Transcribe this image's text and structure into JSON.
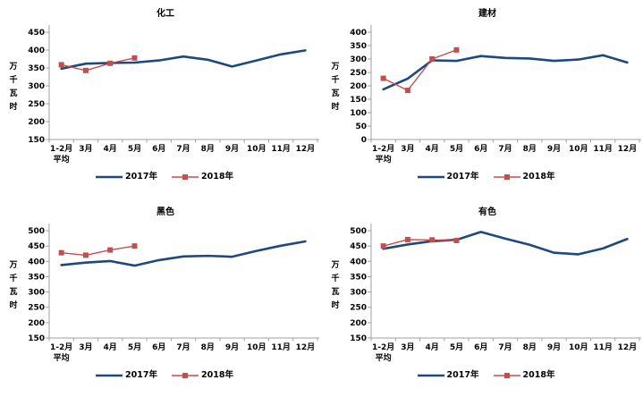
{
  "page": {
    "background": "#FFFFFF"
  },
  "colors": {
    "series_2017": "#1F497D",
    "series_2018": "#C0504D",
    "axis": "#A0A0A0",
    "text": "#000000"
  },
  "legend": {
    "items": [
      "2017年",
      "2018年"
    ]
  },
  "chart_data": [
    {
      "type": "line",
      "id": "chemicals",
      "title": "化工",
      "ylabel": "万千瓦时",
      "ylim": [
        150,
        450
      ],
      "ystep": 50,
      "grid": false,
      "legend_position": "bottom",
      "categories": [
        "1-2月\n平均",
        "3月",
        "4月",
        "5月",
        "6月",
        "7月",
        "8月",
        "9月",
        "10月",
        "11月",
        "12月"
      ],
      "series": [
        {
          "name": "2017年",
          "key": "2017",
          "color": "#1F497D",
          "marker": false,
          "values": [
            348,
            362,
            364,
            365,
            371,
            382,
            373,
            354,
            371,
            388,
            399
          ]
        },
        {
          "name": "2018年",
          "key": "2018",
          "color": "#C0504D",
          "marker": true,
          "values": [
            359,
            343,
            363,
            378
          ]
        }
      ]
    },
    {
      "type": "line",
      "id": "building-materials",
      "title": "建材",
      "ylabel": "万千瓦时",
      "ylim": [
        0,
        400
      ],
      "ystep": 50,
      "grid": false,
      "legend_position": "bottom",
      "categories": [
        "1-2月\n平均",
        "3月",
        "4月",
        "5月",
        "6月",
        "7月",
        "8月",
        "9月",
        "10月",
        "11月",
        "12月"
      ],
      "series": [
        {
          "name": "2017年",
          "key": "2017",
          "color": "#1F497D",
          "marker": false,
          "values": [
            187,
            227,
            295,
            293,
            311,
            304,
            302,
            293,
            298,
            314,
            287
          ]
        },
        {
          "name": "2018年",
          "key": "2018",
          "color": "#C0504D",
          "marker": true,
          "values": [
            228,
            183,
            300,
            334
          ]
        }
      ]
    },
    {
      "type": "line",
      "id": "ferrous",
      "title": "黑色",
      "ylabel": "万千瓦时",
      "ylim": [
        150,
        500
      ],
      "ystep": 50,
      "grid": false,
      "legend_position": "bottom",
      "categories": [
        "1-2月\n平均",
        "3月",
        "4月",
        "5月",
        "6月",
        "7月",
        "8月",
        "9月",
        "10月",
        "11月",
        "12月"
      ],
      "series": [
        {
          "name": "2017年",
          "key": "2017",
          "color": "#1F497D",
          "marker": false,
          "values": [
            388,
            396,
            401,
            386,
            404,
            416,
            418,
            415,
            434,
            451,
            465
          ]
        },
        {
          "name": "2018年",
          "key": "2018",
          "color": "#C0504D",
          "marker": true,
          "values": [
            428,
            420,
            437,
            450
          ]
        }
      ]
    },
    {
      "type": "line",
      "id": "nonferrous",
      "title": "有色",
      "ylabel": "万千瓦时",
      "ylim": [
        150,
        500
      ],
      "ystep": 50,
      "grid": false,
      "legend_position": "bottom",
      "categories": [
        "1-2月\n平均",
        "3月",
        "4月",
        "5月",
        "6月",
        "7月",
        "8月",
        "9月",
        "10月",
        "11月",
        "12月"
      ],
      "series": [
        {
          "name": "2017年",
          "key": "2017",
          "color": "#1F497D",
          "marker": false,
          "values": [
            441,
            455,
            466,
            470,
            496,
            474,
            454,
            428,
            423,
            442,
            473
          ]
        },
        {
          "name": "2018年",
          "key": "2018",
          "color": "#C0504D",
          "marker": true,
          "values": [
            450,
            471,
            470,
            468
          ]
        }
      ]
    }
  ]
}
